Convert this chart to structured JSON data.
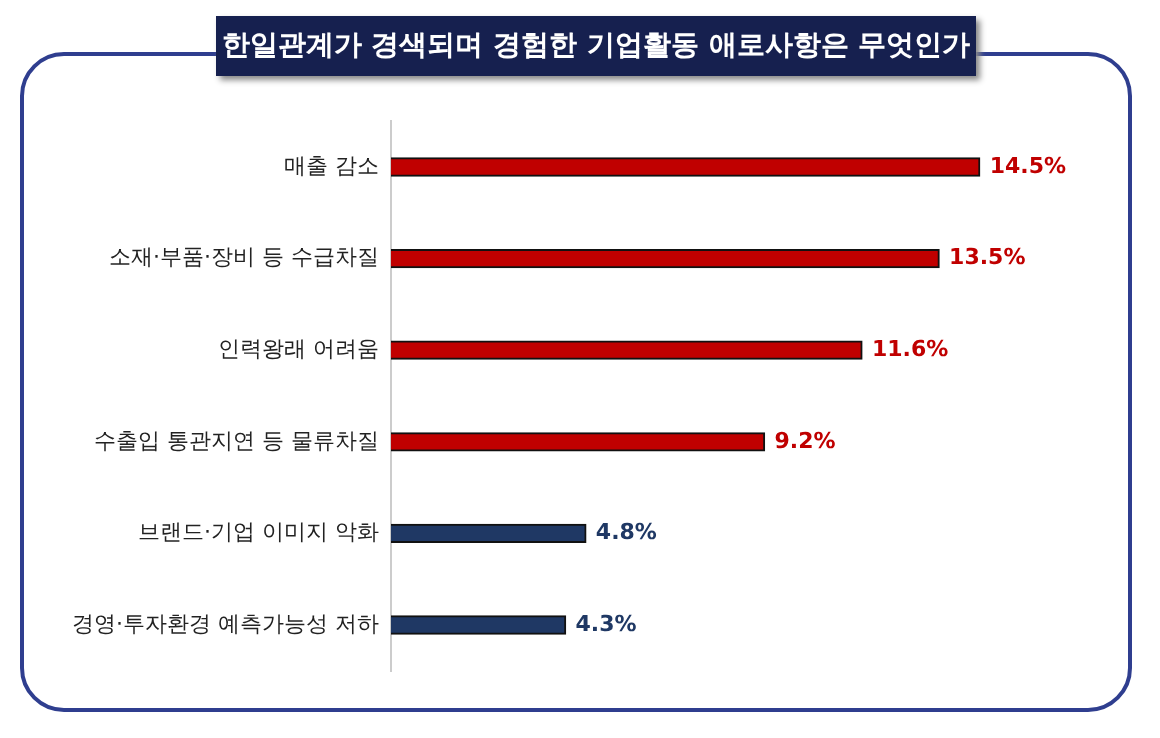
{
  "chart_data": {
    "type": "bar",
    "orientation": "horizontal",
    "title": "한일관계가 경색되며 경험한 기업활동 애로사항은 무엇인가",
    "categories": [
      "매출 감소",
      "소재·부품·장비 등 수급차질",
      "인력왕래 어려움",
      "수출입 통관지연 등 물류차질",
      "브랜드·기업 이미지 악화",
      "경영·투자환경 예측가능성 저하"
    ],
    "values": [
      14.5,
      13.5,
      11.6,
      9.2,
      4.8,
      4.3
    ],
    "colors": [
      "#c00000",
      "#c00000",
      "#c00000",
      "#c00000",
      "#1f3864",
      "#1f3864"
    ],
    "value_labels": [
      "14.5%",
      "13.5%",
      "11.6%",
      "9.2%",
      "4.8%",
      "4.3%"
    ],
    "grid": false,
    "legend": false
  }
}
